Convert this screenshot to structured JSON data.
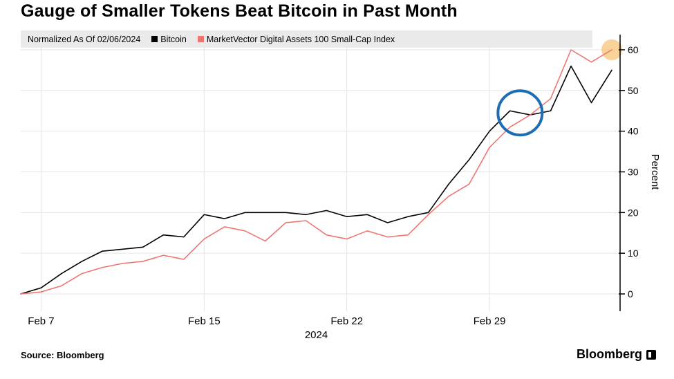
{
  "legend": {
    "note": "Normalized As Of 02/06/2024",
    "items": [
      {
        "label": "Bitcoin",
        "color": "#000000"
      },
      {
        "label": "MarketVector Digital Assets 100 Small-Cap Index",
        "color": "#ee7672"
      }
    ]
  },
  "footer": {
    "source": "Source: Bloomberg",
    "brand": "Bloomberg"
  },
  "chart_data": {
    "type": "line",
    "title": "Gauge of Smaller Tokens Beat Bitcoin in Past Month",
    "ylabel": "Percent",
    "ylim": [
      0,
      60
    ],
    "y_ticks": [
      0,
      10,
      20,
      30,
      40,
      50,
      60
    ],
    "x": [
      "Feb 6",
      "Feb 7",
      "Feb 8",
      "Feb 9",
      "Feb 10",
      "Feb 11",
      "Feb 12",
      "Feb 13",
      "Feb 14",
      "Feb 15",
      "Feb 16",
      "Feb 17",
      "Feb 18",
      "Feb 19",
      "Feb 20",
      "Feb 21",
      "Feb 22",
      "Feb 23",
      "Feb 24",
      "Feb 25",
      "Feb 26",
      "Feb 27",
      "Feb 28",
      "Feb 29",
      "Mar 1",
      "Mar 2",
      "Mar 3",
      "Mar 4",
      "Mar 5",
      "Mar 6"
    ],
    "x_tick_labels": [
      {
        "label": "Feb 7",
        "index": 1
      },
      {
        "label": "Feb 15",
        "index": 9
      },
      {
        "label": "Feb 22",
        "index": 16
      },
      {
        "label": "Feb 29",
        "index": 23
      }
    ],
    "x_axis_sublabel": "2024",
    "series": [
      {
        "name": "Bitcoin",
        "color": "#000000",
        "values": [
          0,
          1.5,
          5,
          8,
          10.5,
          11,
          11.5,
          14.5,
          14,
          19.5,
          18.5,
          20,
          20,
          20,
          19.5,
          20.5,
          19,
          19.5,
          17.5,
          19,
          20,
          27,
          33,
          40,
          45,
          44,
          45,
          56,
          47,
          55
        ]
      },
      {
        "name": "MarketVector Digital Assets 100 Small-Cap Index",
        "color": "#ee7672",
        "values": [
          0,
          0.5,
          2,
          5,
          6.5,
          7.5,
          8,
          9.5,
          8.5,
          13.5,
          16.5,
          15.5,
          13,
          17.5,
          18,
          14.5,
          13.5,
          15.5,
          14,
          14.5,
          19.5,
          24,
          27,
          36,
          41,
          44,
          48,
          60,
          57,
          60
        ]
      }
    ],
    "annotations": {
      "circle": {
        "x_index": 24.5,
        "y_value": 44.5,
        "radius": 32,
        "color": "#1f6eb5"
      },
      "end_highlight": {
        "series_index": 1,
        "radius": 15,
        "color": "#f8c880",
        "opacity": 0.8
      }
    },
    "grid": true,
    "legend_position": "top"
  }
}
